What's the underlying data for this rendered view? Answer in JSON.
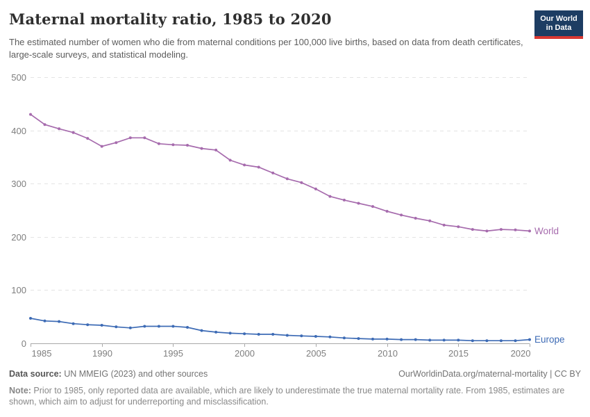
{
  "header": {
    "title": "Maternal mortality ratio, 1985 to 2020",
    "subtitle": "The estimated number of women who die from maternal conditions per 100,000 live births, based on data from death certificates, large-scale surveys, and statistical modeling.",
    "logo": {
      "line1": "Our World",
      "line2": "in Data"
    },
    "logo_colors": {
      "background": "#1d3d63",
      "bar": "#d93832",
      "text": "#ffffff"
    }
  },
  "chart_data": {
    "type": "line",
    "title": "Maternal mortality ratio, 1985 to 2020",
    "xlabel": "",
    "ylabel": "",
    "ylim": [
      0,
      500
    ],
    "yticks": [
      0,
      100,
      200,
      300,
      400,
      500
    ],
    "xticks": [
      1985,
      1990,
      1995,
      2000,
      2005,
      2010,
      2015,
      2020
    ],
    "grid": "horizontal-dashed",
    "legend_position": "end-of-line-labels",
    "x": [
      1985,
      1986,
      1987,
      1988,
      1989,
      1990,
      1991,
      1992,
      1993,
      1994,
      1995,
      1996,
      1997,
      1998,
      1999,
      2000,
      2001,
      2002,
      2003,
      2004,
      2005,
      2006,
      2007,
      2008,
      2009,
      2010,
      2011,
      2012,
      2013,
      2014,
      2015,
      2016,
      2017,
      2018,
      2019,
      2020
    ],
    "series": [
      {
        "name": "World",
        "color": "#a66bad",
        "values": [
          430,
          411,
          403,
          396,
          385,
          370,
          377,
          386,
          386,
          375,
          373,
          372,
          366,
          363,
          344,
          335,
          331,
          320,
          309,
          302,
          290,
          276,
          269,
          263,
          257,
          248,
          241,
          235,
          230,
          222,
          219,
          214,
          211,
          214,
          213,
          211
        ]
      },
      {
        "name": "Europe",
        "color": "#3d6bb5",
        "values": [
          47,
          42,
          41,
          37,
          35,
          34,
          31,
          29,
          32,
          32,
          32,
          30,
          24,
          21,
          19,
          18,
          17,
          17,
          15,
          14,
          13,
          12,
          10,
          9,
          8,
          8,
          7,
          7,
          6,
          6,
          6,
          5,
          5,
          5,
          5,
          7
        ]
      }
    ],
    "axis_colors": {
      "gridline": "#e3e3e3",
      "axis": "#a9a9a9",
      "tick_label": "#7e7e7e"
    }
  },
  "footer": {
    "source_label": "Data source:",
    "source_text": " UN MMEIG (2023) and other sources",
    "attribution": "OurWorldinData.org/maternal-mortality | CC BY",
    "note_label": "Note:",
    "note_text": " Prior to 1985, only reported data are available, which are likely to underestimate the true maternal mortality rate. From 1985, estimates are shown, which aim to adjust for underreporting and misclassification."
  }
}
